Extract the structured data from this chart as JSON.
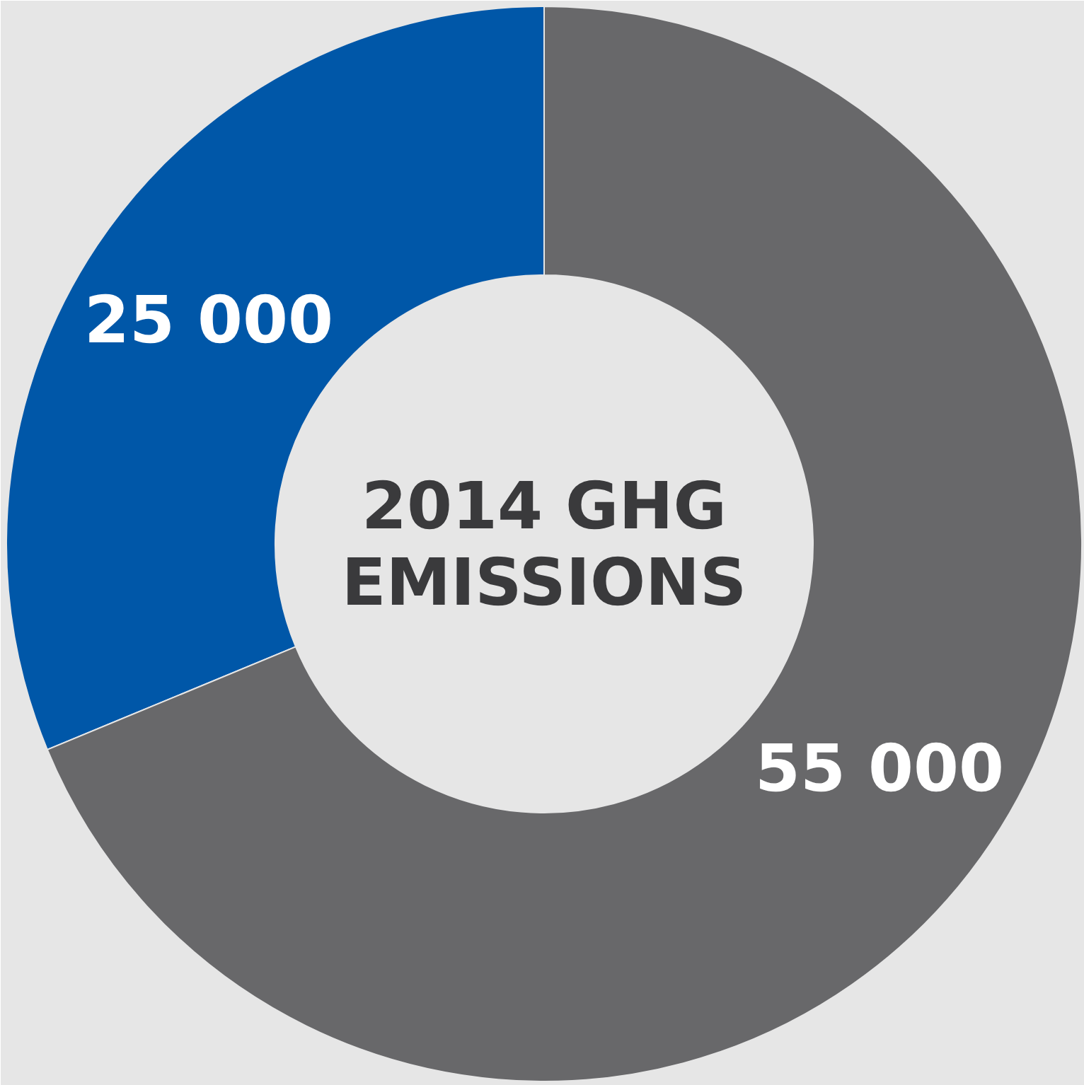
{
  "chart_data": {
    "type": "donut",
    "title": "2014 GHG\nEMISSIONS",
    "categories": [
      null,
      null
    ],
    "values": [
      25000,
      55000
    ],
    "colors": [
      "#0057a8",
      "#68686a"
    ],
    "value_labels": [
      "25 000",
      "55 000"
    ]
  }
}
